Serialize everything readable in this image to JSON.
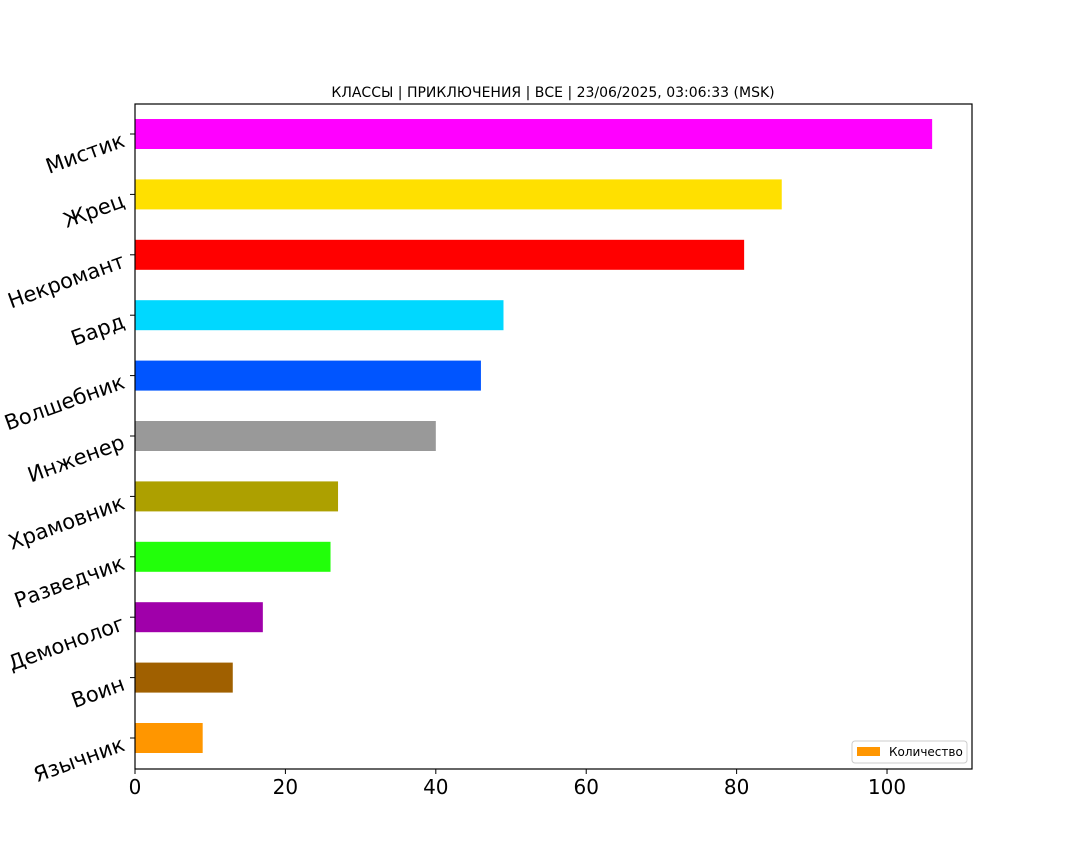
{
  "chart_data": {
    "type": "bar",
    "orientation": "horizontal",
    "title": "КЛАССЫ | ПРИКЛЮЧЕНИЯ | ВСЕ | 23/06/2025, 03:06:33 (MSK)",
    "categories": [
      "Мистик",
      "Жрец",
      "Некромант",
      "Бард",
      "Волшебник",
      "Инженер",
      "Храмовник",
      "Разведчик",
      "Демонолог",
      "Воин",
      "Язычник"
    ],
    "series": [
      {
        "name": "Количество",
        "values": [
          106,
          86,
          81,
          49,
          46,
          40,
          27,
          26,
          17,
          13,
          9
        ]
      }
    ],
    "bar_colors": [
      "#ff00ff",
      "#ffe000",
      "#ff0000",
      "#00d8ff",
      "#0055ff",
      "#999999",
      "#ada000",
      "#22ff0a",
      "#a000aa",
      "#a06000",
      "#ff9600"
    ],
    "legend_color": "#ff9600",
    "xlim": [
      0,
      111.3
    ],
    "xticks": [
      "0",
      "20",
      "40",
      "60",
      "80",
      "100"
    ],
    "legend_position": "bottom-right",
    "grid": false
  }
}
